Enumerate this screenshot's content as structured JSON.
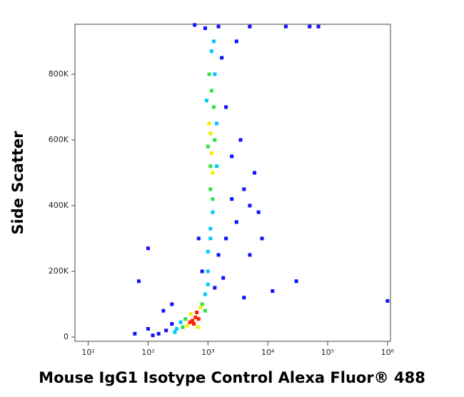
{
  "chart_data": {
    "type": "scatter",
    "x_label": "Mouse IgG1 Isotype Control Alexa Fluor® 488",
    "y_label": "Side Scatter",
    "xscale": "log",
    "xlim": [
      6,
      1120000
    ],
    "ylim": [
      -13000,
      952000
    ],
    "xticks": [
      {
        "value": 10,
        "label": "10¹"
      },
      {
        "value": 100,
        "label": "10²"
      },
      {
        "value": 1000,
        "label": "10³"
      },
      {
        "value": 10000,
        "label": "10⁴"
      },
      {
        "value": 100000,
        "label": "10⁵"
      },
      {
        "value": 1000000,
        "label": "10⁶"
      }
    ],
    "yticks": [
      0,
      {
        "value": 200000,
        "label": "200K"
      },
      {
        "value": 400000,
        "label": "400K"
      },
      {
        "value": 600000,
        "label": "600K"
      },
      {
        "value": 800000,
        "label": "800K"
      }
    ],
    "series": [
      {
        "color": "#1010ff",
        "x": [
          200,
          150,
          250,
          100,
          180,
          120,
          800,
          1500,
          2000,
          3000,
          5000,
          4000,
          6000,
          2500,
          3500,
          8000,
          5000,
          2000,
          1700,
          3000,
          900,
          1500,
          5000,
          20000,
          50000,
          70000,
          30000,
          1000000,
          60,
          70,
          100,
          1300,
          1800,
          700,
          600,
          2500,
          7000,
          12000,
          4000,
          250
        ],
        "values": [
          20000,
          10000,
          40000,
          25000,
          80000,
          5000,
          200000,
          250000,
          300000,
          350000,
          400000,
          450000,
          500000,
          550000,
          600000,
          300000,
          250000,
          700000,
          850000,
          900000,
          940000,
          945000,
          945000,
          945000,
          945000,
          945000,
          170000,
          110000,
          10000,
          170000,
          270000,
          150000,
          180000,
          300000,
          950000,
          420000,
          380000,
          140000,
          120000,
          100000
        ]
      },
      {
        "color": "#00c8ff",
        "x": [
          300,
          350,
          900,
          1000,
          1000,
          1100,
          1200,
          950,
          1400,
          1300,
          1150,
          1400,
          280,
          1000,
          1100,
          1250
        ],
        "values": [
          25000,
          45000,
          130000,
          200000,
          260000,
          330000,
          380000,
          720000,
          650000,
          800000,
          870000,
          520000,
          15000,
          160000,
          300000,
          900000
        ]
      },
      {
        "color": "#30e040",
        "x": [
          380,
          800,
          900,
          420,
          1100,
          1250,
          1150,
          1000,
          1300,
          1200,
          1050,
          1100
        ],
        "values": [
          30000,
          100000,
          80000,
          55000,
          450000,
          700000,
          750000,
          580000,
          600000,
          420000,
          800000,
          520000
        ]
      },
      {
        "color": "#f0f000",
        "x": [
          450,
          750,
          520,
          680,
          1150,
          1100,
          1200,
          1050
        ],
        "values": [
          35000,
          90000,
          70000,
          30000,
          560000,
          620000,
          500000,
          650000
        ]
      },
      {
        "color": "#ff2000",
        "x": [
          550,
          620,
          500,
          650,
          580,
          700
        ],
        "values": [
          50000,
          60000,
          45000,
          75000,
          40000,
          55000
        ]
      }
    ]
  }
}
